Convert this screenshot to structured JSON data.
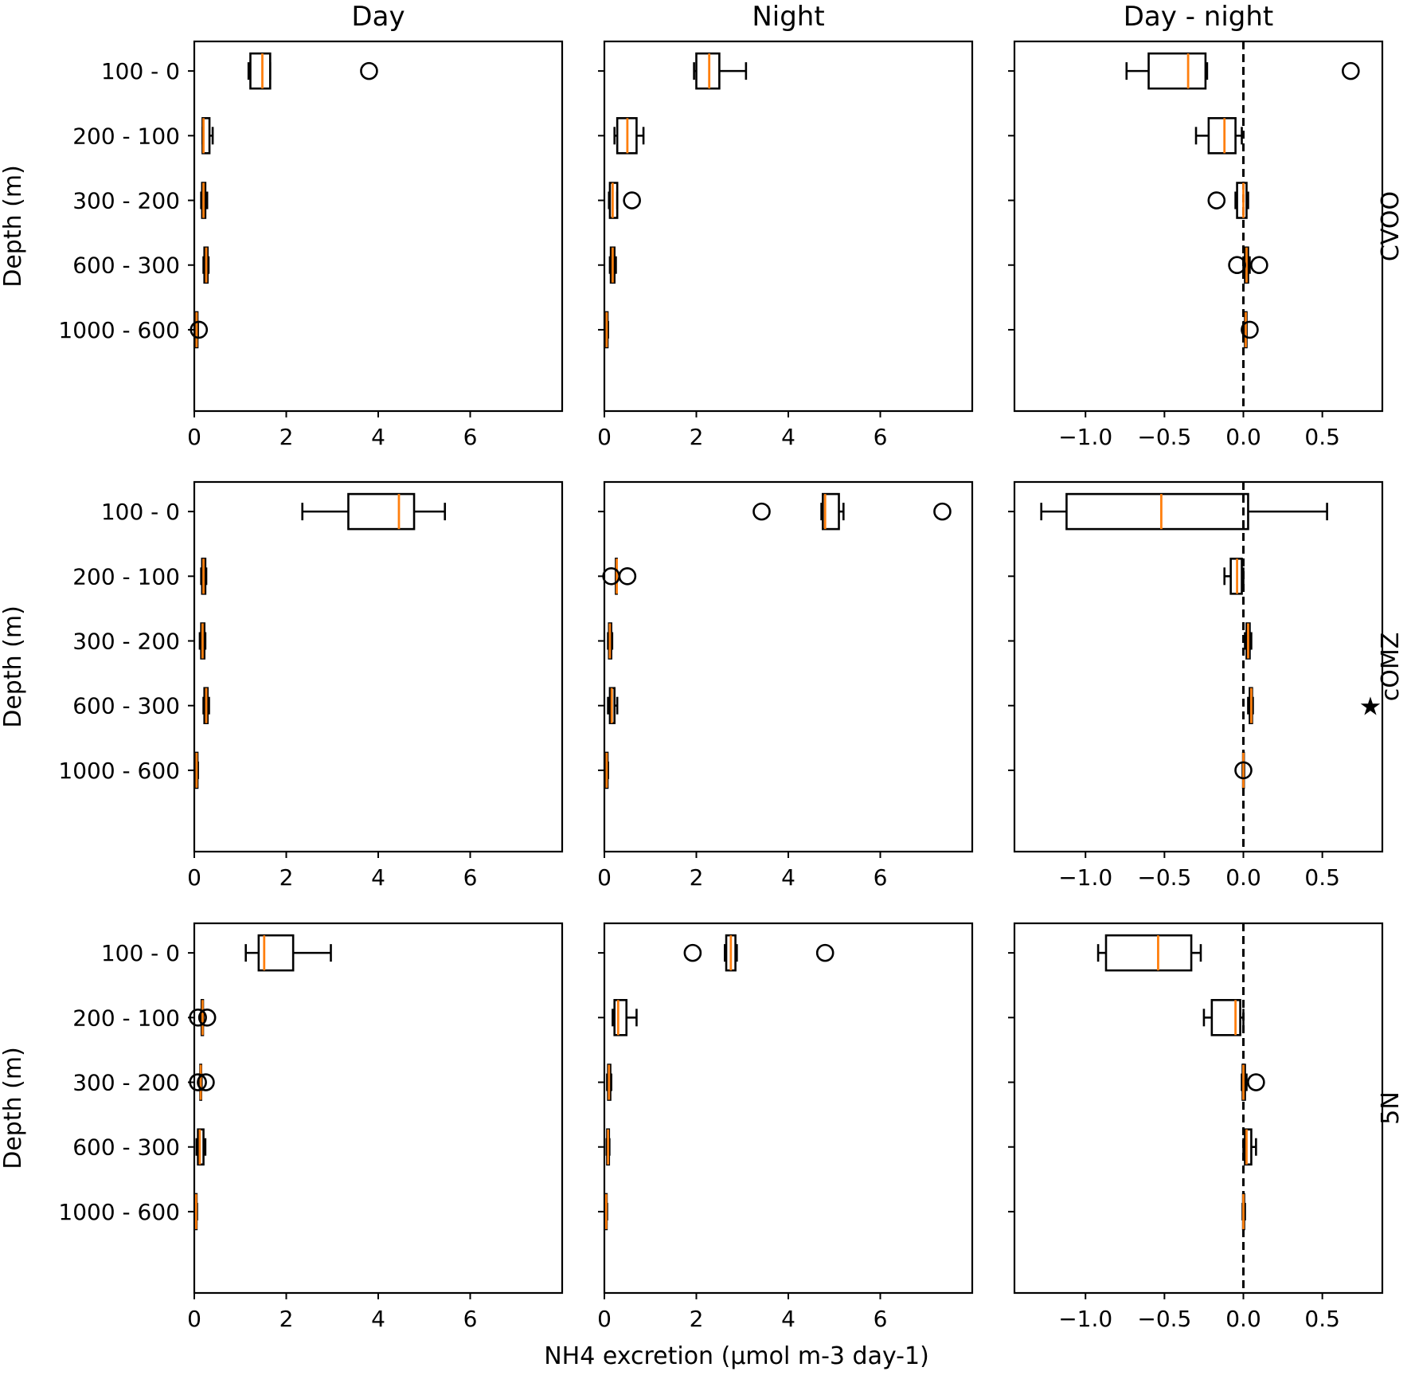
{
  "chart_data": {
    "type": "boxplot",
    "columns": [
      "Day",
      "Night",
      "Day - night"
    ],
    "rows": [
      "CVOO",
      "cOMZ",
      "5N"
    ],
    "categories": [
      "100 - 0",
      "200 - 100",
      "300 - 200",
      "600 - 300",
      "1000 - 600"
    ],
    "ylabel": "Depth (m)",
    "xlabel": "NH4 excretion (µmol m-3 day-1)",
    "xlim": {
      "Day": [
        0,
        8
      ],
      "Night": [
        0,
        8
      ],
      "Day - night": [
        -1.45,
        0.88
      ]
    },
    "xticks": {
      "Day": [
        "0",
        "2",
        "4",
        "6"
      ],
      "Night": [
        "0",
        "2",
        "4",
        "6"
      ],
      "Day - night": [
        "−1.0",
        "−0.5",
        "0.0",
        "0.5"
      ]
    },
    "xtick_values": {
      "Day": [
        0,
        2,
        4,
        6
      ],
      "Night": [
        0,
        2,
        4,
        6
      ],
      "Day - night": [
        -1.0,
        -0.5,
        0.0,
        0.5
      ]
    },
    "reference_line": {
      "column": "Day - night",
      "x": 0
    },
    "significance_marker": {
      "row": "cOMZ",
      "category": "600 - 300",
      "symbol": "★"
    },
    "panels": [
      {
        "row": "CVOO",
        "column": "Day",
        "boxes": [
          {
            "category": "100 - 0",
            "whislo": 1.18,
            "q1": 1.22,
            "med": 1.48,
            "q3": 1.65,
            "whishi": 1.65,
            "fliers": [
              3.8
            ]
          },
          {
            "category": "200 - 100",
            "whislo": 0.18,
            "q1": 0.18,
            "med": 0.2,
            "q3": 0.33,
            "whishi": 0.4,
            "fliers": []
          },
          {
            "category": "300 - 200",
            "whislo": 0.15,
            "q1": 0.17,
            "med": 0.2,
            "q3": 0.24,
            "whishi": 0.28,
            "fliers": []
          },
          {
            "category": "600 - 300",
            "whislo": 0.2,
            "q1": 0.22,
            "med": 0.26,
            "q3": 0.29,
            "whishi": 0.31,
            "fliers": []
          },
          {
            "category": "1000 - 600",
            "whislo": 0.03,
            "q1": 0.04,
            "med": 0.05,
            "q3": 0.07,
            "whishi": 0.08,
            "fliers": [
              0.1
            ]
          }
        ]
      },
      {
        "row": "CVOO",
        "column": "Night",
        "boxes": [
          {
            "category": "100 - 0",
            "whislo": 1.95,
            "q1": 2.0,
            "med": 2.28,
            "q3": 2.5,
            "whishi": 3.08,
            "fliers": []
          },
          {
            "category": "200 - 100",
            "whislo": 0.22,
            "q1": 0.28,
            "med": 0.5,
            "q3": 0.7,
            "whishi": 0.85,
            "fliers": []
          },
          {
            "category": "300 - 200",
            "whislo": 0.1,
            "q1": 0.12,
            "med": 0.18,
            "q3": 0.28,
            "whishi": 0.28,
            "fliers": [
              0.6
            ]
          },
          {
            "category": "600 - 300",
            "whislo": 0.12,
            "q1": 0.14,
            "med": 0.18,
            "q3": 0.22,
            "whishi": 0.25,
            "fliers": []
          },
          {
            "category": "1000 - 600",
            "whislo": 0.03,
            "q1": 0.04,
            "med": 0.05,
            "q3": 0.07,
            "whishi": 0.08,
            "fliers": []
          }
        ]
      },
      {
        "row": "CVOO",
        "column": "Day - night",
        "boxes": [
          {
            "category": "100 - 0",
            "whislo": -0.74,
            "q1": -0.6,
            "med": -0.35,
            "q3": -0.24,
            "whishi": -0.23,
            "fliers": [
              0.68
            ]
          },
          {
            "category": "200 - 100",
            "whislo": -0.3,
            "q1": -0.22,
            "med": -0.12,
            "q3": -0.05,
            "whishi": -0.01,
            "fliers": []
          },
          {
            "category": "300 - 200",
            "whislo": -0.05,
            "q1": -0.04,
            "med": 0.0,
            "q3": 0.02,
            "whishi": 0.03,
            "fliers": [
              -0.17
            ]
          },
          {
            "category": "600 - 300",
            "whislo": 0.0,
            "q1": 0.01,
            "med": 0.02,
            "q3": 0.03,
            "whishi": 0.04,
            "fliers": [
              -0.04,
              0.1
            ]
          },
          {
            "category": "1000 - 600",
            "whislo": 0.0,
            "q1": 0.01,
            "med": 0.015,
            "q3": 0.02,
            "whishi": 0.02,
            "fliers": [
              0.04
            ]
          }
        ]
      },
      {
        "row": "cOMZ",
        "column": "Day",
        "boxes": [
          {
            "category": "100 - 0",
            "whislo": 2.35,
            "q1": 3.35,
            "med": 4.45,
            "q3": 4.78,
            "whishi": 5.45,
            "fliers": []
          },
          {
            "category": "200 - 100",
            "whislo": 0.15,
            "q1": 0.17,
            "med": 0.2,
            "q3": 0.24,
            "whishi": 0.26,
            "fliers": []
          },
          {
            "category": "300 - 200",
            "whislo": 0.12,
            "q1": 0.15,
            "med": 0.18,
            "q3": 0.22,
            "whishi": 0.24,
            "fliers": []
          },
          {
            "category": "600 - 300",
            "whislo": 0.2,
            "q1": 0.22,
            "med": 0.26,
            "q3": 0.29,
            "whishi": 0.32,
            "fliers": []
          },
          {
            "category": "1000 - 600",
            "whislo": 0.03,
            "q1": 0.04,
            "med": 0.05,
            "q3": 0.07,
            "whishi": 0.08,
            "fliers": []
          }
        ]
      },
      {
        "row": "cOMZ",
        "column": "Night",
        "boxes": [
          {
            "category": "100 - 0",
            "whislo": 4.72,
            "q1": 4.75,
            "med": 4.8,
            "q3": 5.1,
            "whishi": 5.2,
            "fliers": [
              3.42,
              7.35
            ]
          },
          {
            "category": "200 - 100",
            "whislo": 0.25,
            "q1": 0.25,
            "med": 0.27,
            "q3": 0.27,
            "whishi": 0.27,
            "fliers": [
              0.15,
              0.5
            ]
          },
          {
            "category": "300 - 200",
            "whislo": 0.08,
            "q1": 0.1,
            "med": 0.12,
            "q3": 0.15,
            "whishi": 0.17,
            "fliers": []
          },
          {
            "category": "600 - 300",
            "whislo": 0.08,
            "q1": 0.12,
            "med": 0.16,
            "q3": 0.22,
            "whishi": 0.28,
            "fliers": []
          },
          {
            "category": "1000 - 600",
            "whislo": 0.03,
            "q1": 0.04,
            "med": 0.05,
            "q3": 0.07,
            "whishi": 0.08,
            "fliers": []
          }
        ]
      },
      {
        "row": "cOMZ",
        "column": "Day - night",
        "boxes": [
          {
            "category": "100 - 0",
            "whislo": -1.28,
            "q1": -1.12,
            "med": -0.52,
            "q3": 0.03,
            "whishi": 0.53,
            "fliers": []
          },
          {
            "category": "200 - 100",
            "whislo": -0.12,
            "q1": -0.08,
            "med": -0.04,
            "q3": -0.01,
            "whishi": 0.0,
            "fliers": []
          },
          {
            "category": "300 - 200",
            "whislo": 0.01,
            "q1": 0.02,
            "med": 0.03,
            "q3": 0.04,
            "whishi": 0.05,
            "fliers": []
          },
          {
            "category": "600 - 300",
            "whislo": 0.03,
            "q1": 0.04,
            "med": 0.05,
            "q3": 0.055,
            "whishi": 0.06,
            "fliers": []
          },
          {
            "category": "1000 - 600",
            "whislo": -0.005,
            "q1": -0.002,
            "med": 0.0,
            "q3": 0.002,
            "whishi": 0.005,
            "fliers": [
              0.0
            ]
          }
        ]
      },
      {
        "row": "5N",
        "column": "Day",
        "boxes": [
          {
            "category": "100 - 0",
            "whislo": 1.12,
            "q1": 1.4,
            "med": 1.52,
            "q3": 2.15,
            "whishi": 2.97,
            "fliers": []
          },
          {
            "category": "200 - 100",
            "whislo": 0.15,
            "q1": 0.16,
            "med": 0.18,
            "q3": 0.19,
            "whishi": 0.2,
            "fliers": [
              0.08,
              0.28
            ]
          },
          {
            "category": "300 - 200",
            "whislo": 0.12,
            "q1": 0.13,
            "med": 0.14,
            "q3": 0.15,
            "whishi": 0.16,
            "fliers": [
              0.08,
              0.25
            ]
          },
          {
            "category": "600 - 300",
            "whislo": 0.05,
            "q1": 0.08,
            "med": 0.12,
            "q3": 0.2,
            "whishi": 0.24,
            "fliers": []
          },
          {
            "category": "1000 - 600",
            "whislo": 0.02,
            "q1": 0.03,
            "med": 0.04,
            "q3": 0.05,
            "whishi": 0.06,
            "fliers": []
          }
        ]
      },
      {
        "row": "5N",
        "column": "Night",
        "boxes": [
          {
            "category": "100 - 0",
            "whislo": 2.62,
            "q1": 2.65,
            "med": 2.75,
            "q3": 2.85,
            "whishi": 2.88,
            "fliers": [
              1.92,
              4.8
            ]
          },
          {
            "category": "200 - 100",
            "whislo": 0.18,
            "q1": 0.22,
            "med": 0.3,
            "q3": 0.48,
            "whishi": 0.7,
            "fliers": []
          },
          {
            "category": "300 - 200",
            "whislo": 0.06,
            "q1": 0.08,
            "med": 0.1,
            "q3": 0.13,
            "whishi": 0.15,
            "fliers": []
          },
          {
            "category": "600 - 300",
            "whislo": 0.05,
            "q1": 0.06,
            "med": 0.08,
            "q3": 0.1,
            "whishi": 0.11,
            "fliers": []
          },
          {
            "category": "1000 - 600",
            "whislo": 0.02,
            "q1": 0.03,
            "med": 0.04,
            "q3": 0.05,
            "whishi": 0.06,
            "fliers": []
          }
        ]
      },
      {
        "row": "5N",
        "column": "Day - night",
        "boxes": [
          {
            "category": "100 - 0",
            "whislo": -0.92,
            "q1": -0.87,
            "med": -0.54,
            "q3": -0.33,
            "whishi": -0.27,
            "fliers": []
          },
          {
            "category": "200 - 100",
            "whislo": -0.25,
            "q1": -0.2,
            "med": -0.05,
            "q3": -0.02,
            "whishi": 0.0,
            "fliers": []
          },
          {
            "category": "300 - 200",
            "whislo": -0.01,
            "q1": -0.005,
            "med": 0.0,
            "q3": 0.01,
            "whishi": 0.02,
            "fliers": [
              0.08
            ]
          },
          {
            "category": "600 - 300",
            "whislo": 0.0,
            "q1": 0.01,
            "med": 0.02,
            "q3": 0.05,
            "whishi": 0.08,
            "fliers": []
          },
          {
            "category": "1000 - 600",
            "whislo": -0.005,
            "q1": -0.002,
            "med": 0.0,
            "q3": 0.005,
            "whishi": 0.01,
            "fliers": []
          }
        ]
      }
    ]
  }
}
